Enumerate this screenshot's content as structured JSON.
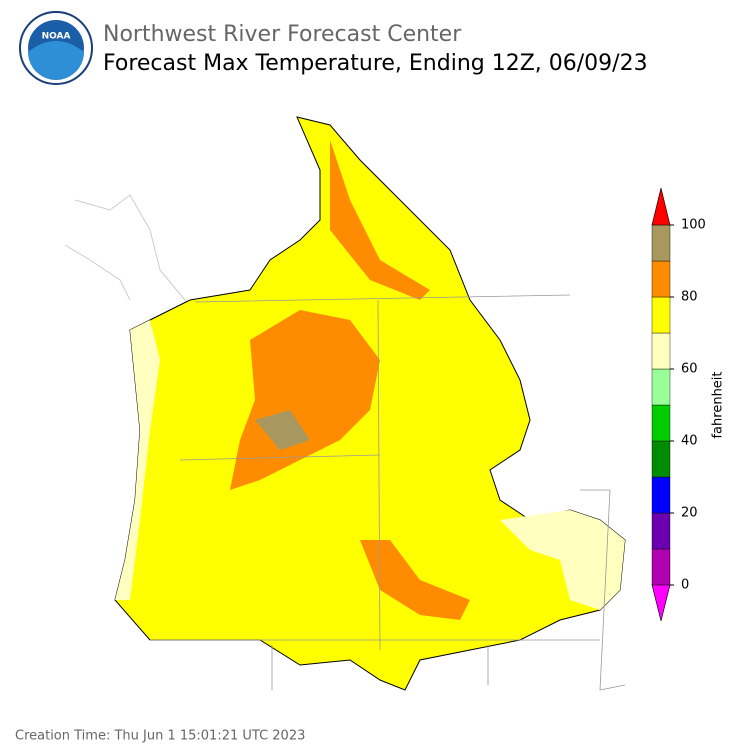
{
  "header": {
    "org": "Northwest River Forecast Center",
    "title": "Forecast Max Temperature, Ending 12Z, 06/09/23",
    "logo_text": "NOAA"
  },
  "colorbar": {
    "label": "fahrenheit",
    "levels": [
      0,
      10,
      20,
      30,
      40,
      50,
      60,
      70,
      80,
      90,
      100
    ],
    "ticks": [
      0,
      20,
      40,
      60,
      80,
      100
    ],
    "colors": [
      "#b000b0",
      "#6a00b0",
      "#0000ff",
      "#008c00",
      "#00cc00",
      "#99ff99",
      "#ffffc0",
      "#ffff00",
      "#ff8c00",
      "#a89860"
    ],
    "under_color": "#ff00ff",
    "over_color": "#ff0000"
  },
  "footer": {
    "creation_time": "Creation Time: Thu Jun 1 15:01:21 UTC 2023"
  }
}
